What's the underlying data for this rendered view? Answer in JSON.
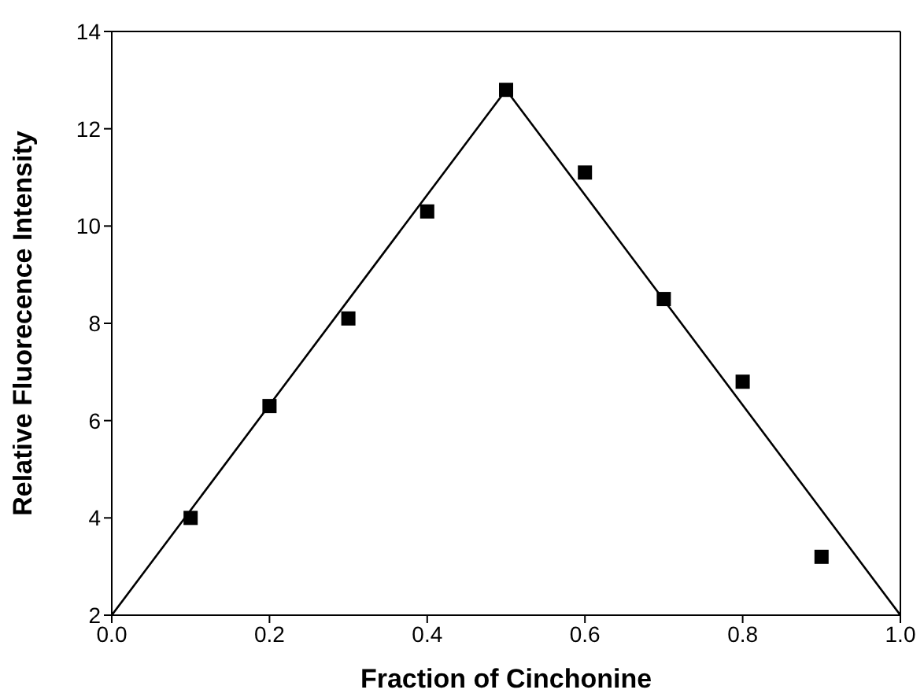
{
  "chart_data": {
    "type": "scatter",
    "xlabel": "Fraction of Cinchonine",
    "ylabel": "Relative Fluorecence Intensity",
    "xlim": [
      0,
      1
    ],
    "ylim": [
      2,
      14
    ],
    "xticks": [
      {
        "value": 0,
        "label": "0.0"
      },
      {
        "value": 0.2,
        "label": "0.2"
      },
      {
        "value": 0.4,
        "label": "0.4"
      },
      {
        "value": 0.6,
        "label": "0.6"
      },
      {
        "value": 0.8,
        "label": "0.8"
      },
      {
        "value": 1,
        "label": "1.0"
      }
    ],
    "yticks": [
      2,
      4,
      6,
      8,
      10,
      12,
      14
    ],
    "series": [
      {
        "color": "#000000",
        "marker": "square",
        "x": [
          0.1,
          0.2,
          0.3,
          0.4,
          0.5,
          0.6,
          0.7,
          0.8,
          0.9
        ],
        "values": [
          4.0,
          6.3,
          8.1,
          10.3,
          12.8,
          11.1,
          8.5,
          6.8,
          3.2
        ]
      },
      {
        "type": "line",
        "color": "#000000",
        "x": [
          0,
          0.5,
          1
        ],
        "values": [
          2,
          12.8,
          2
        ]
      }
    ]
  }
}
